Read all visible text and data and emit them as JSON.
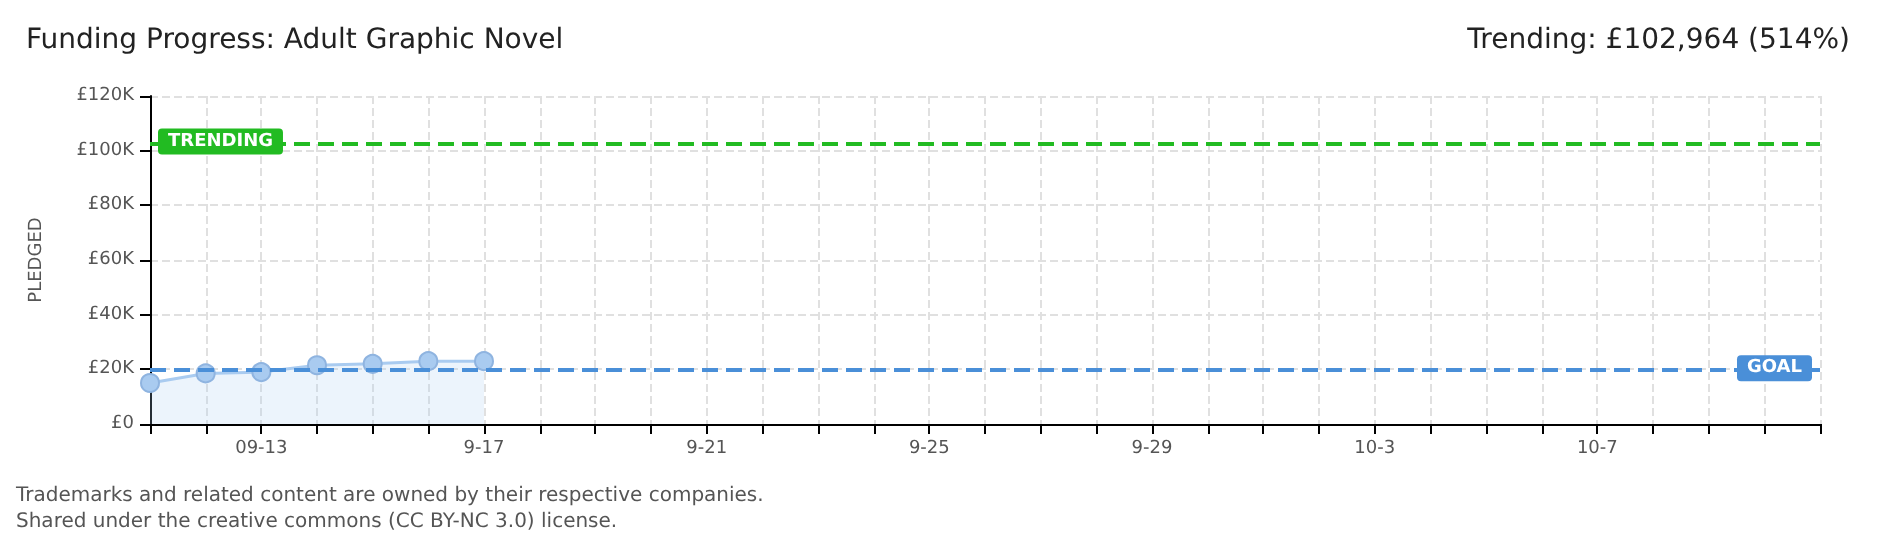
{
  "chart_data": {
    "type": "area",
    "title": "Funding Progress: Adult Graphic Novel",
    "subtitle": "Trending: £102,964 (514%)",
    "ylabel": "PLEDGED",
    "categories": [
      null,
      null,
      "09-13",
      null,
      null,
      null,
      "9-17",
      null,
      null,
      null,
      "9-21",
      null,
      null,
      null,
      "9-25",
      null,
      null,
      null,
      "9-29",
      null,
      null,
      null,
      "10-3",
      null,
      null,
      null,
      "10-7",
      null,
      null,
      null,
      null
    ],
    "series": [
      {
        "color": "#a9cbf0",
        "values": [
          15000,
          18500,
          19000,
          21500,
          22000,
          23000,
          23000,
          null,
          null,
          null,
          null,
          null,
          null,
          null,
          null,
          null,
          null,
          null,
          null,
          null,
          null,
          null,
          null,
          null,
          null,
          null,
          null,
          null,
          null,
          null,
          null
        ]
      }
    ],
    "ylim": [
      0,
      120000
    ],
    "yticks": [
      {
        "value": 0,
        "label": "£0"
      },
      {
        "value": 20000,
        "label": "£20K"
      },
      {
        "value": 40000,
        "label": "£40K"
      },
      {
        "value": 60000,
        "label": "£60K"
      },
      {
        "value": 80000,
        "label": "£80K"
      },
      {
        "value": 100000,
        "label": "£100K"
      },
      {
        "value": 120000,
        "label": "£120K"
      }
    ],
    "ref_lines": [
      {
        "axis": "y",
        "value": 102964,
        "label": "TRENDING",
        "color": "#22bb22",
        "line_style": "dashed"
      },
      {
        "axis": "y",
        "value": 20000,
        "label": "GOAL",
        "color": "#4a8fd8",
        "line_style": "dashed"
      }
    ],
    "annotations": [
      "Trademarks and related content are owned by their respective companies.",
      "Shared under the creative commons (CC BY-NC 3.0) license."
    ],
    "grid": true,
    "marker": "circle"
  }
}
